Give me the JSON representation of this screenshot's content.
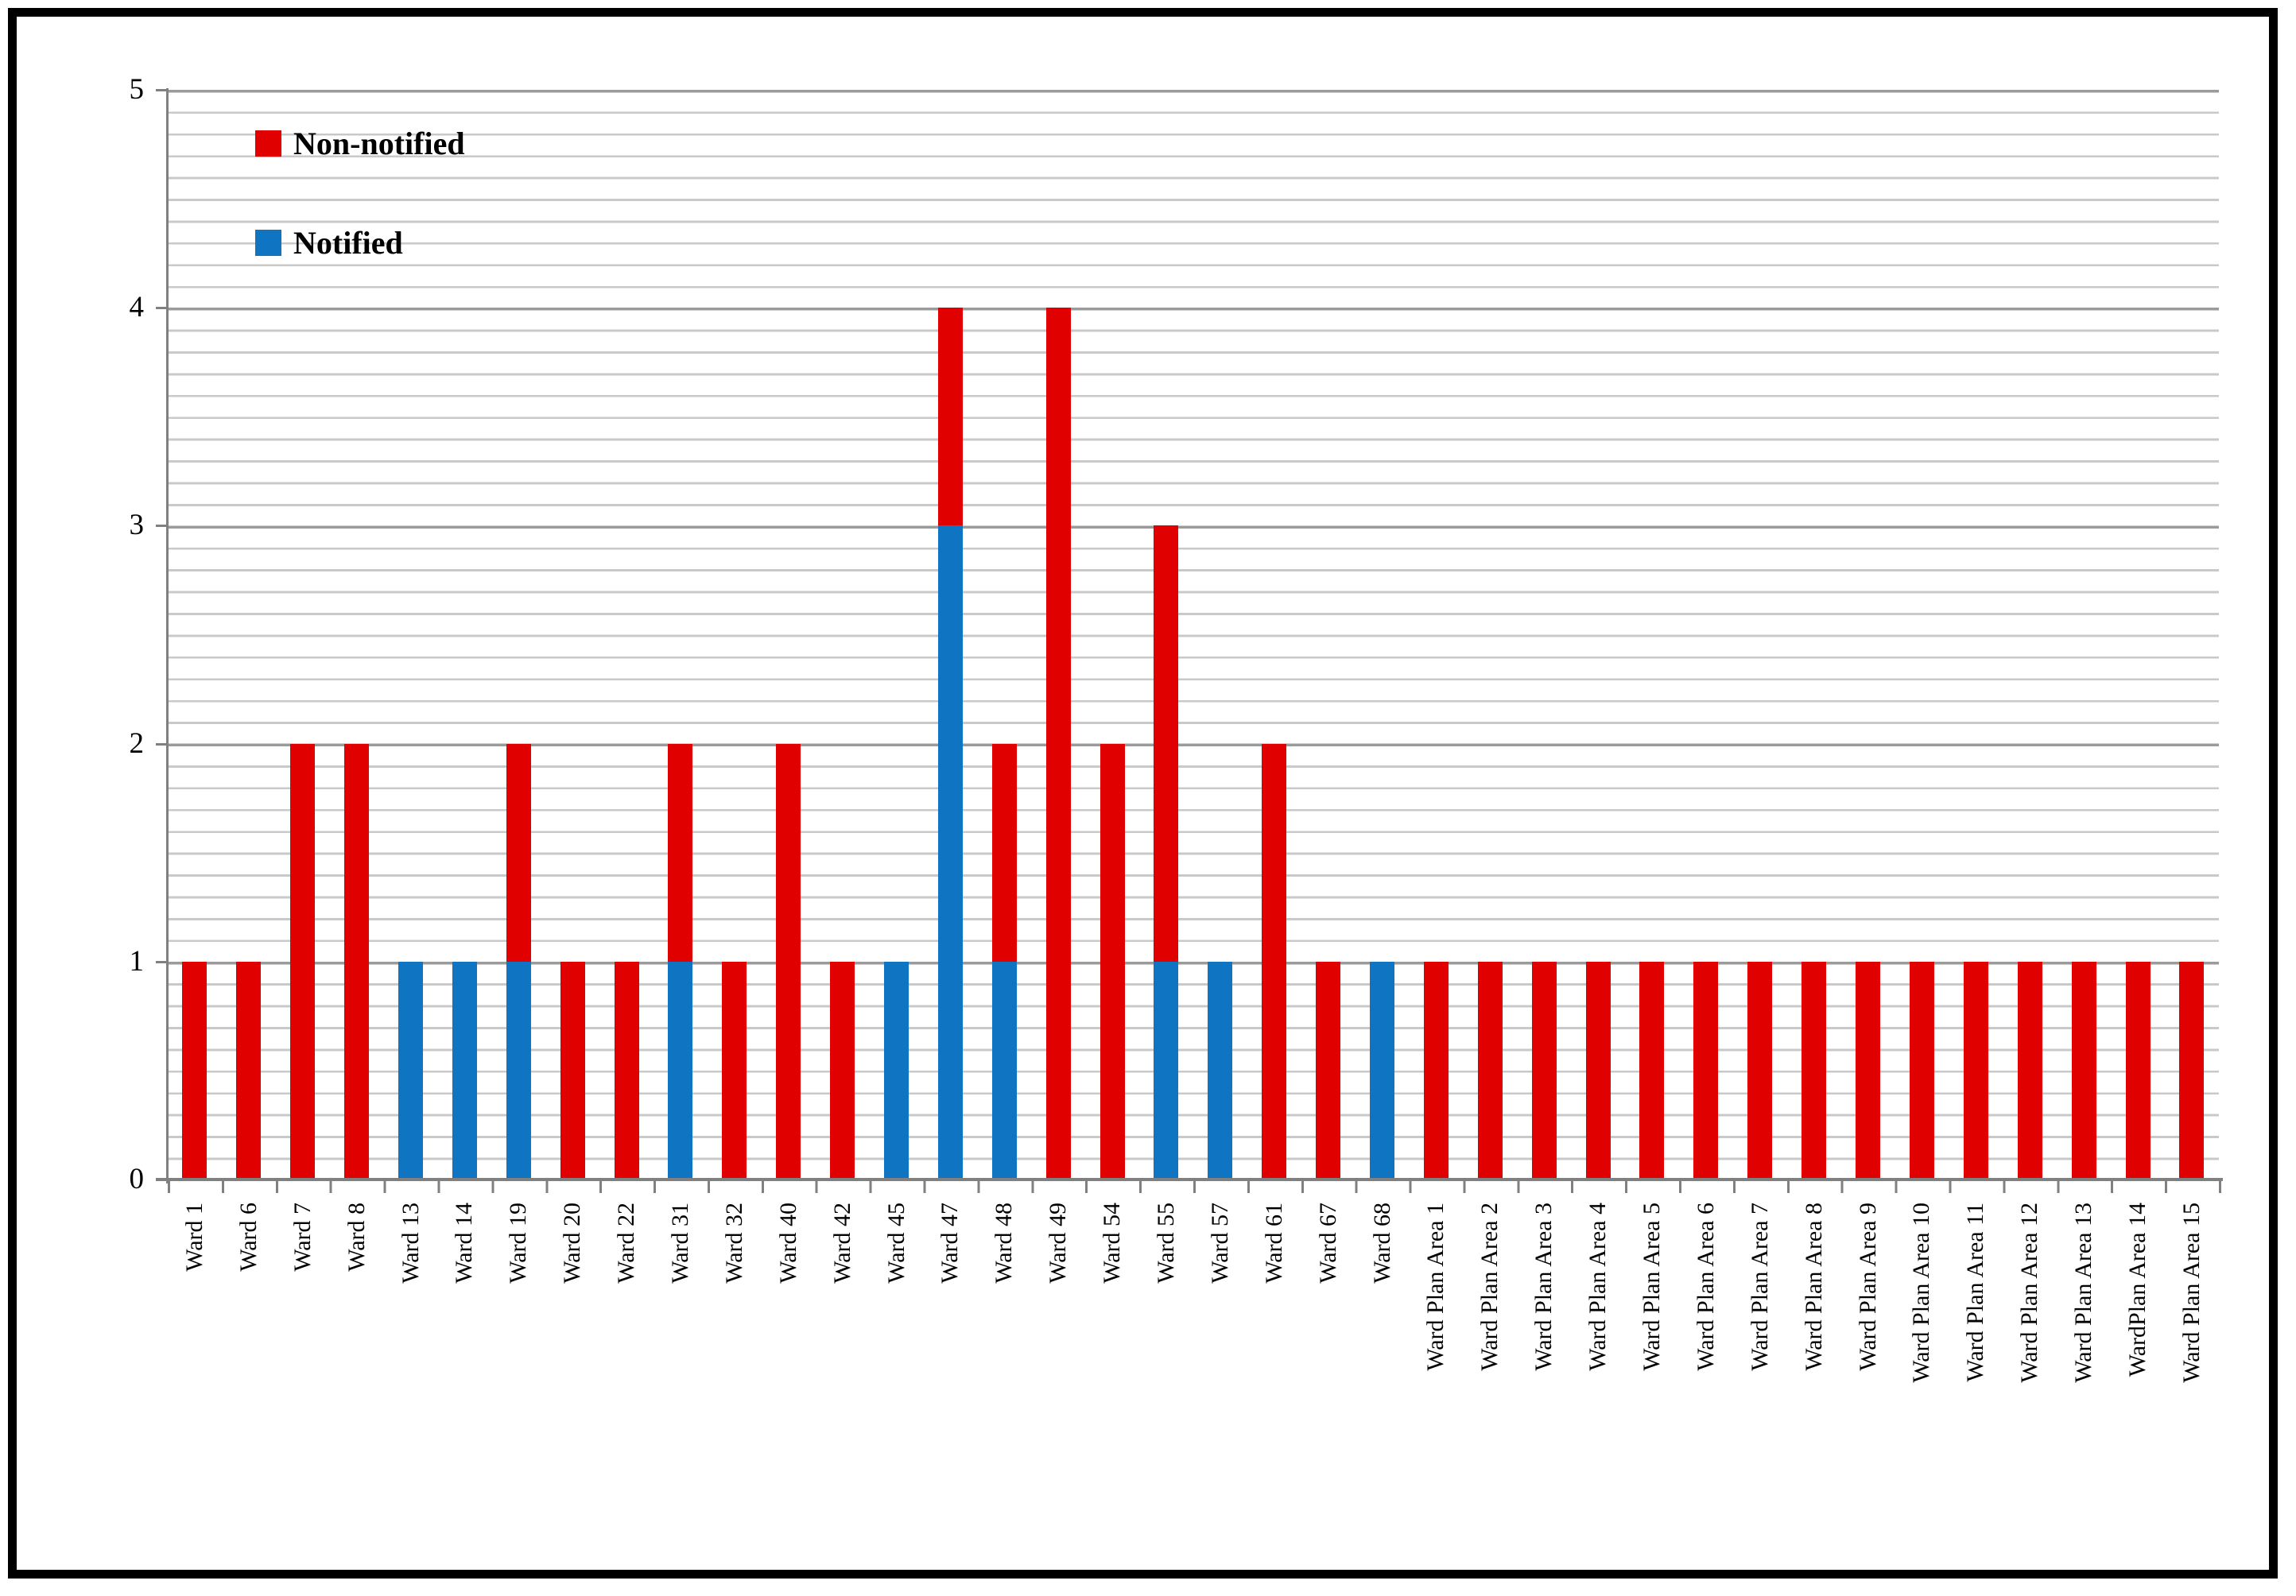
{
  "chart_data": {
    "type": "bar",
    "stacked": true,
    "title": "",
    "xlabel": "",
    "ylabel": "",
    "categories": [
      "Ward 1",
      "Ward 6",
      "Ward 7",
      "Ward 8",
      "Ward 13",
      "Ward 14",
      "Ward 19",
      "Ward 20",
      "Ward 22",
      "Ward 31",
      "Ward 32",
      "Ward 40",
      "Ward 42",
      "Ward 45",
      "Ward 47",
      "Ward 48",
      "Ward 49",
      "Ward 54",
      "Ward 55",
      "Ward 57",
      "Ward 61",
      "Ward 67",
      "Ward 68",
      "Ward Plan Area 1",
      "Ward Plan Area 2",
      "Ward Plan Area 3",
      "Ward Plan Area 4",
      "Ward Plan Area 5",
      "Ward Plan Area 6",
      "Ward Plan Area 7",
      "Ward Plan Area 8",
      "Ward Plan Area 9",
      "Ward Plan Area 10",
      "Ward Plan Area 11",
      "Ward Plan Area 12",
      "Ward Plan Area 13",
      "WardPlan Area 14",
      "Ward Plan Area 15"
    ],
    "series": [
      {
        "name": "Non-notified",
        "color": "#e00000",
        "values": [
          1,
          1,
          2,
          2,
          0,
          0,
          1,
          1,
          1,
          1,
          1,
          2,
          1,
          0,
          1,
          1,
          4,
          2,
          2,
          0,
          2,
          1,
          0,
          1,
          1,
          1,
          1,
          1,
          1,
          1,
          1,
          1,
          1,
          1,
          1,
          1,
          1,
          1
        ]
      },
      {
        "name": "Notified",
        "color": "#0f74c2",
        "values": [
          0,
          0,
          0,
          0,
          1,
          1,
          1,
          0,
          0,
          1,
          0,
          0,
          0,
          1,
          3,
          1,
          0,
          0,
          1,
          1,
          0,
          0,
          1,
          0,
          0,
          0,
          0,
          0,
          0,
          0,
          0,
          0,
          0,
          0,
          0,
          0,
          0,
          0
        ]
      }
    ],
    "ylim": [
      0,
      5
    ],
    "y_ticks": [
      5,
      4,
      3,
      2,
      1,
      0
    ],
    "y_minor_unit": 0.1,
    "grid": true,
    "legend_position": "top-left"
  },
  "legend": {
    "items": [
      {
        "label": "Non-notified",
        "color": "#e00000"
      },
      {
        "label": "Notified",
        "color": "#0f74c2"
      }
    ]
  },
  "axis_colors": {
    "axis_line": "#808080",
    "major_grid": "#9b9b9b",
    "minor_grid": "#c9c9c9"
  }
}
